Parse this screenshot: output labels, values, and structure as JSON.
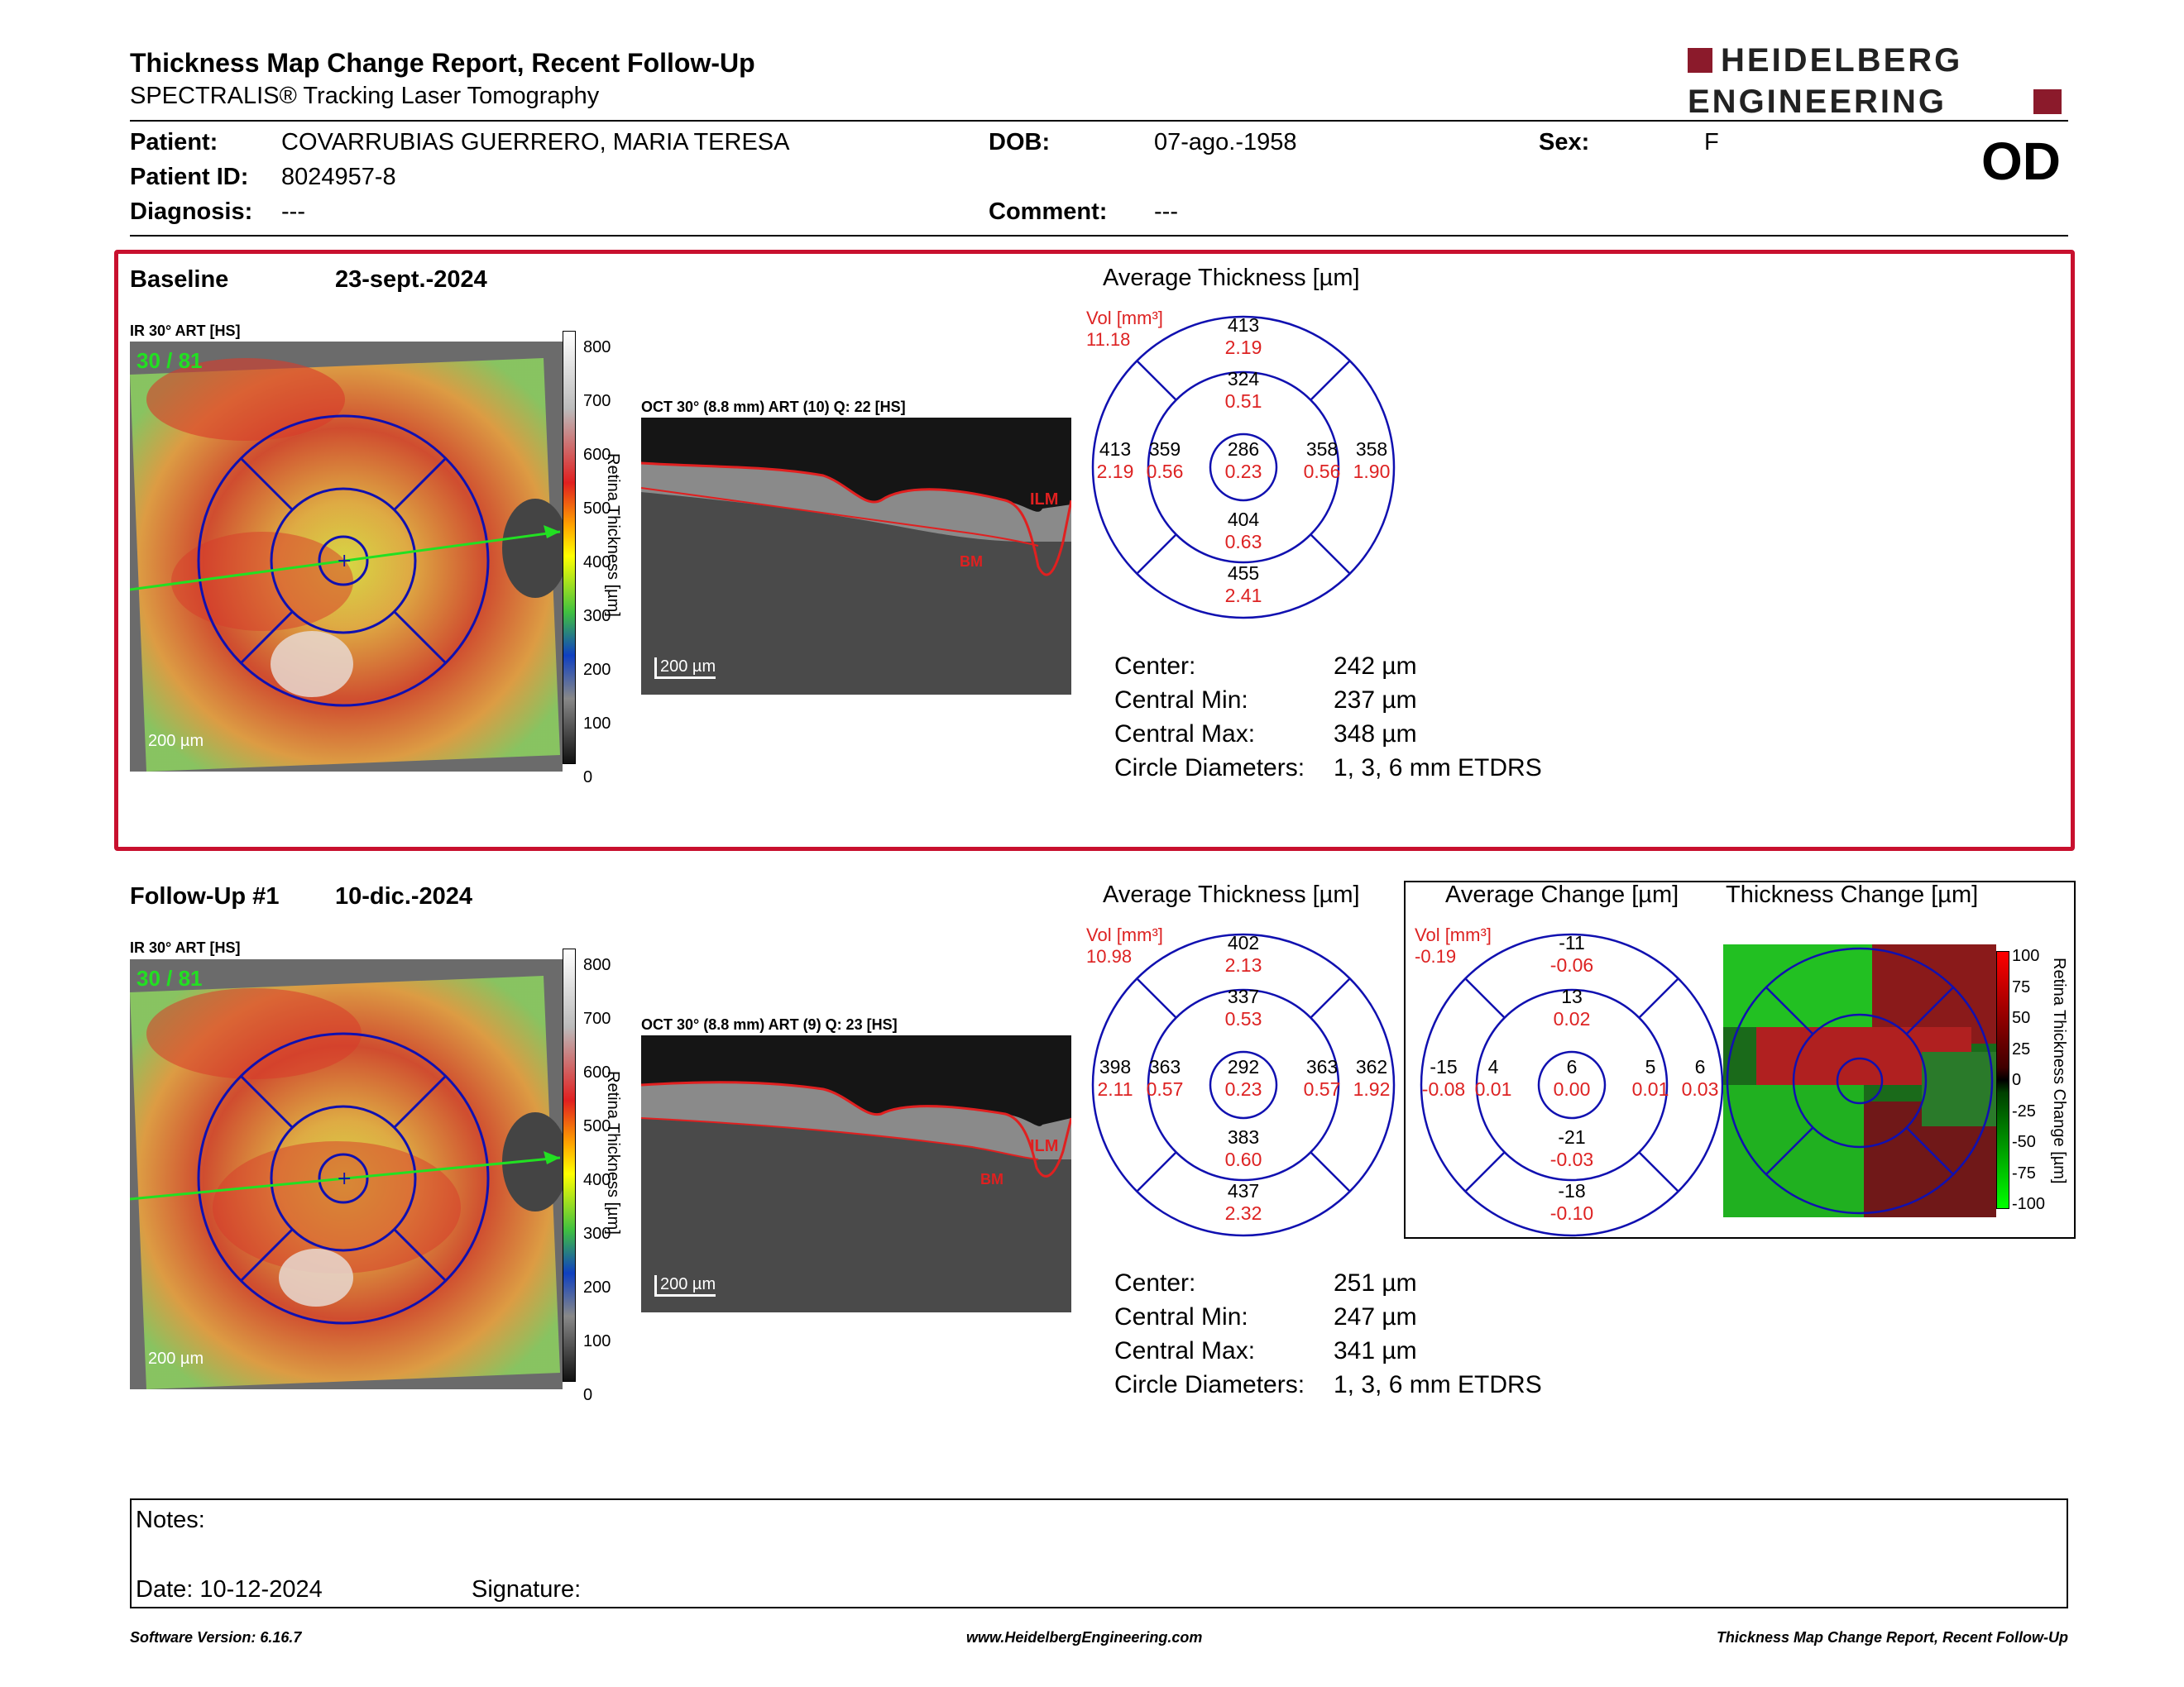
{
  "header": {
    "title": "Thickness Map Change Report, Recent Follow-Up",
    "subtitle": "SPECTRALIS® Tracking Laser Tomography",
    "logo_line1": "HEIDELBERG",
    "logo_line2": "ENGINEERING",
    "eye": "OD"
  },
  "patient": {
    "patient_label": "Patient:",
    "patient_name": "COVARRUBIAS GUERRERO, MARIA TERESA",
    "dob_label": "DOB:",
    "dob": "07-ago.-1958",
    "sex_label": "Sex:",
    "sex": "F",
    "id_label": "Patient ID:",
    "id": "8024957-8",
    "diagnosis_label": "Diagnosis:",
    "diagnosis": "---",
    "comment_label": "Comment:",
    "comment": "---"
  },
  "baseline": {
    "label": "Baseline",
    "date": "23-sept.-2024",
    "ir_label": "IR 30° ART [HS]",
    "ir_overlay": "30 / 81",
    "scale_label": "200 µm",
    "oct_label": "OCT 30° (8.8 mm) ART (10) Q: 22 [HS]",
    "oct_scale": "200 µm",
    "avg_title": "Average Thickness [µm]",
    "vol_label": "Vol [mm³]",
    "vol": "11.18",
    "grid": {
      "center": [
        "286",
        "0.23"
      ],
      "inner_top": [
        "324",
        "0.51"
      ],
      "inner_bottom": [
        "404",
        "0.63"
      ],
      "inner_left": [
        "359",
        "0.56"
      ],
      "inner_right": [
        "358",
        "0.56"
      ],
      "outer_top": [
        "413",
        "2.19"
      ],
      "outer_bottom": [
        "455",
        "2.41"
      ],
      "outer_left": [
        "413",
        "2.19"
      ],
      "outer_right": [
        "358",
        "1.90"
      ]
    },
    "stats": {
      "center_label": "Center:",
      "center": "242 µm",
      "min_label": "Central Min:",
      "min": "237 µm",
      "max_label": "Central Max:",
      "max": "348 µm",
      "diam_label": "Circle Diameters:",
      "diam": "1, 3, 6 mm ETDRS"
    }
  },
  "followup": {
    "label": "Follow-Up #1",
    "date": "10-dic.-2024",
    "ir_label": "IR 30° ART [HS]",
    "ir_overlay": "30 / 81",
    "scale_label": "200 µm",
    "oct_label": "OCT 30° (8.8 mm) ART (9) Q: 23 [HS]",
    "oct_scale": "200 µm",
    "avg_title": "Average Thickness [µm]",
    "vol_label": "Vol [mm³]",
    "vol": "10.98",
    "grid": {
      "center": [
        "292",
        "0.23"
      ],
      "inner_top": [
        "337",
        "0.53"
      ],
      "inner_bottom": [
        "383",
        "0.60"
      ],
      "inner_left": [
        "363",
        "0.57"
      ],
      "inner_right": [
        "363",
        "0.57"
      ],
      "outer_top": [
        "402",
        "2.13"
      ],
      "outer_bottom": [
        "437",
        "2.32"
      ],
      "outer_left": [
        "398",
        "2.11"
      ],
      "outer_right": [
        "362",
        "1.92"
      ]
    },
    "stats": {
      "center_label": "Center:",
      "center": "251 µm",
      "min_label": "Central Min:",
      "min": "247 µm",
      "max_label": "Central Max:",
      "max": "341 µm",
      "diam_label": "Circle Diameters:",
      "diam": "1, 3, 6 mm ETDRS"
    },
    "change_title": "Average Change [µm]",
    "change_vol": "-0.19",
    "change_grid": {
      "center": [
        "6",
        "0.00"
      ],
      "inner_top": [
        "13",
        "0.02"
      ],
      "inner_bottom": [
        "-21",
        "-0.03"
      ],
      "inner_left": [
        "4",
        "0.01"
      ],
      "inner_right": [
        "5",
        "0.01"
      ],
      "outer_top": [
        "-11",
        "-0.06"
      ],
      "outer_bottom": [
        "-18",
        "-0.10"
      ],
      "outer_left": [
        "-15",
        "-0.08"
      ],
      "outer_right": [
        "6",
        "0.03"
      ]
    },
    "thick_change_title": "Thickness Change [µm]",
    "change_scale_label": "Retina Thickness Change [µm]",
    "change_ticks": [
      "100",
      "75",
      "50",
      "25",
      "0",
      "-25",
      "-50",
      "-75",
      "-100"
    ]
  },
  "colorbar": {
    "label": "Retina Thickness [µm]",
    "ticks": [
      "800",
      "700",
      "600",
      "500",
      "400",
      "300",
      "200",
      "100",
      "0"
    ]
  },
  "oct_labels": {
    "ilm": "ILM",
    "bm": "BM"
  },
  "notes": {
    "notes_label": "Notes:",
    "date_label": "Date: 10-12-2024",
    "signature_label": "Signature:"
  },
  "footer": {
    "version": "Software Version: 6.16.7",
    "url": "www.HeidelbergEngineering.com",
    "report": "Thickness Map Change Report, Recent Follow-Up"
  },
  "colors": {
    "accent_red": "#c8102e",
    "grid_blue": "#1010b0",
    "value_red": "#dd2222"
  }
}
